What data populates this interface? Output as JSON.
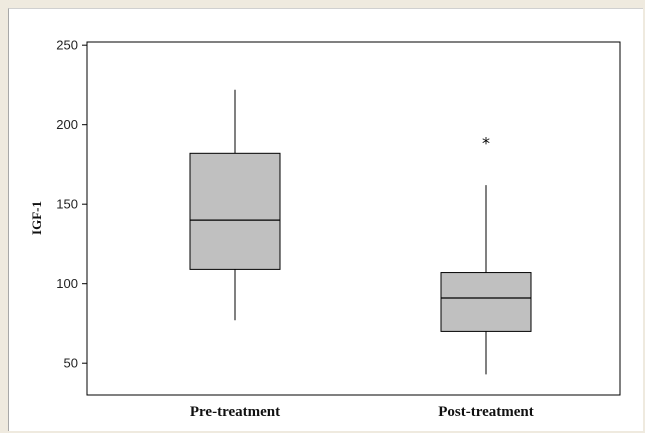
{
  "chart_data": {
    "type": "box",
    "title": "",
    "xlabel": "",
    "ylabel": "IGF-1",
    "ylim": [
      30,
      252
    ],
    "yticks": [
      50,
      100,
      150,
      200,
      250
    ],
    "grid": false,
    "categories": [
      "Pre-treatment",
      "Post-treatment"
    ],
    "boxes": [
      {
        "category": "Pre-treatment",
        "whisker_low": 77,
        "q1": 109,
        "median": 140,
        "q3": 182,
        "whisker_high": 222,
        "outliers": []
      },
      {
        "category": "Post-treatment",
        "whisker_low": 43,
        "q1": 70,
        "median": 91,
        "q3": 107,
        "whisker_high": 162,
        "outliers": [
          190
        ]
      }
    ],
    "outlier_marker": "*",
    "box_color": "#c0c0c0"
  }
}
